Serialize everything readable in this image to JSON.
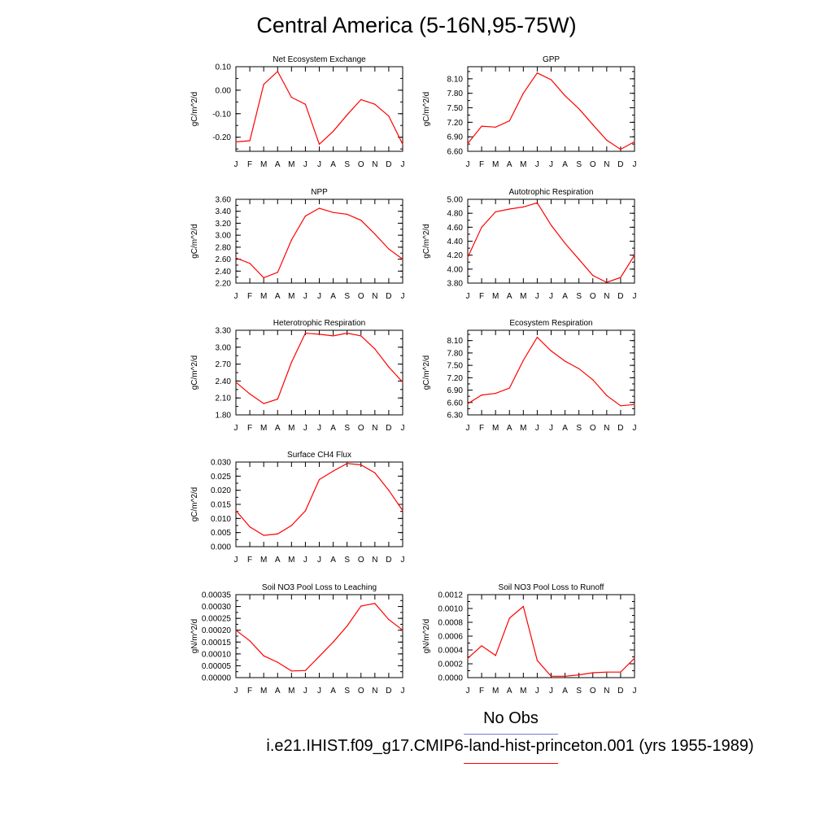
{
  "figure": {
    "title": "Central America (5-16N,95-75W)",
    "legend": [
      {
        "label": "No Obs",
        "color": "#7b7bd6"
      },
      {
        "label": "i.e21.IHIST.f09_g17.CMIP6-land-hist-princeton.001 (yrs 1955-1989)",
        "color": "#ff0000"
      }
    ],
    "line_color": "#ff0000"
  },
  "chart_data": [
    {
      "type": "line",
      "title": "Net Ecosystem Exchange",
      "ylabel": "gC/m^2/d",
      "categories": [
        "J",
        "F",
        "M",
        "A",
        "M",
        "J",
        "J",
        "A",
        "S",
        "O",
        "N",
        "D",
        "J"
      ],
      "ylim": [
        -0.26,
        0.1
      ],
      "yticks": [
        "0.10",
        "0.00",
        "-0.10",
        "-0.20"
      ],
      "ytick_values": [
        0.1,
        0.0,
        -0.1,
        -0.2
      ],
      "values": [
        -0.22,
        -0.215,
        0.025,
        0.08,
        -0.03,
        -0.06,
        -0.23,
        -0.175,
        -0.105,
        -0.04,
        -0.06,
        -0.11,
        -0.23
      ]
    },
    {
      "type": "line",
      "title": "GPP",
      "ylabel": "gC/m^2/d",
      "categories": [
        "J",
        "F",
        "M",
        "A",
        "M",
        "J",
        "J",
        "A",
        "S",
        "O",
        "N",
        "D",
        "J"
      ],
      "ylim": [
        6.6,
        8.35
      ],
      "yticks": [
        "8.10",
        "7.80",
        "7.50",
        "7.20",
        "6.90",
        "6.60"
      ],
      "ytick_values": [
        8.1,
        7.8,
        7.5,
        7.2,
        6.9,
        6.6
      ],
      "values": [
        6.76,
        7.12,
        7.1,
        7.23,
        7.8,
        8.22,
        8.08,
        7.75,
        7.48,
        7.15,
        6.83,
        6.64,
        6.8
      ]
    },
    {
      "type": "line",
      "title": "NPP",
      "ylabel": "gC/m^2/d",
      "categories": [
        "J",
        "F",
        "M",
        "A",
        "M",
        "J",
        "J",
        "A",
        "S",
        "O",
        "N",
        "D",
        "J"
      ],
      "ylim": [
        2.2,
        3.6
      ],
      "yticks": [
        "3.60",
        "3.40",
        "3.20",
        "3.00",
        "2.80",
        "2.60",
        "2.40",
        "2.20"
      ],
      "ytick_values": [
        3.6,
        3.4,
        3.2,
        3.0,
        2.8,
        2.6,
        2.4,
        2.2
      ],
      "values": [
        2.62,
        2.53,
        2.29,
        2.38,
        2.92,
        3.32,
        3.45,
        3.38,
        3.35,
        3.25,
        3.02,
        2.77,
        2.6
      ]
    },
    {
      "type": "line",
      "title": "Autotrophic Respiration",
      "ylabel": "gC/m^2/d",
      "categories": [
        "J",
        "F",
        "M",
        "A",
        "M",
        "J",
        "J",
        "A",
        "S",
        "O",
        "N",
        "D",
        "J"
      ],
      "ylim": [
        3.8,
        5.0
      ],
      "yticks": [
        "5.00",
        "4.80",
        "4.60",
        "4.40",
        "4.20",
        "4.00",
        "3.80"
      ],
      "ytick_values": [
        5.0,
        4.8,
        4.6,
        4.4,
        4.2,
        4.0,
        3.8
      ],
      "values": [
        4.17,
        4.6,
        4.82,
        4.86,
        4.89,
        4.95,
        4.63,
        4.37,
        4.14,
        3.91,
        3.81,
        3.88,
        4.2
      ]
    },
    {
      "type": "line",
      "title": "Heterotrophic Respiration",
      "ylabel": "gC/m^2/d",
      "categories": [
        "J",
        "F",
        "M",
        "A",
        "M",
        "J",
        "J",
        "A",
        "S",
        "O",
        "N",
        "D",
        "J"
      ],
      "ylim": [
        1.8,
        3.3
      ],
      "yticks": [
        "3.30",
        "3.00",
        "2.70",
        "2.40",
        "2.10",
        "1.80"
      ],
      "ytick_values": [
        3.3,
        3.0,
        2.7,
        2.4,
        2.1,
        1.8
      ],
      "values": [
        2.38,
        2.17,
        2.0,
        2.08,
        2.73,
        3.25,
        3.23,
        3.2,
        3.25,
        3.2,
        2.97,
        2.65,
        2.38
      ]
    },
    {
      "type": "line",
      "title": "Ecosystem Respiration",
      "ylabel": "gC/m^2/d",
      "categories": [
        "J",
        "F",
        "M",
        "A",
        "M",
        "J",
        "J",
        "A",
        "S",
        "O",
        "N",
        "D",
        "J"
      ],
      "ylim": [
        6.3,
        8.35
      ],
      "yticks": [
        "8.10",
        "7.80",
        "7.50",
        "7.20",
        "6.90",
        "6.60",
        "6.30"
      ],
      "ytick_values": [
        8.1,
        7.8,
        7.5,
        7.2,
        6.9,
        6.6,
        6.3
      ],
      "values": [
        6.57,
        6.78,
        6.82,
        6.95,
        7.62,
        8.18,
        7.85,
        7.6,
        7.42,
        7.15,
        6.77,
        6.52,
        6.55
      ]
    },
    {
      "type": "line",
      "title": "Surface CH4 Flux",
      "ylabel": "gC/m^2/d",
      "categories": [
        "J",
        "F",
        "M",
        "A",
        "M",
        "J",
        "J",
        "A",
        "S",
        "O",
        "N",
        "D",
        "J"
      ],
      "ylim": [
        0.0,
        0.03
      ],
      "yticks": [
        "0.030",
        "0.025",
        "0.020",
        "0.015",
        "0.010",
        "0.005",
        "0.000"
      ],
      "ytick_values": [
        0.03,
        0.025,
        0.02,
        0.015,
        0.01,
        0.005,
        0.0
      ],
      "values": [
        0.0128,
        0.007,
        0.004,
        0.0045,
        0.0075,
        0.0127,
        0.0238,
        0.0268,
        0.0295,
        0.029,
        0.0262,
        0.02,
        0.0128
      ]
    },
    {
      "type": "line",
      "title": "Soil NO3 Pool Loss to Leaching",
      "ylabel": "gN/m^2/d",
      "categories": [
        "J",
        "F",
        "M",
        "A",
        "M",
        "J",
        "J",
        "A",
        "S",
        "O",
        "N",
        "D",
        "J"
      ],
      "ylim": [
        0.0,
        0.00035
      ],
      "yticks": [
        "0.00035",
        "0.00030",
        "0.00025",
        "0.00020",
        "0.00015",
        "0.00010",
        "0.00005",
        "0.00000"
      ],
      "ytick_values": [
        0.00035,
        0.0003,
        0.00025,
        0.0002,
        0.00015,
        0.0001,
        5e-05,
        0.0
      ],
      "values": [
        0.0002,
        0.000155,
        9.2e-05,
        6.5e-05,
        2.8e-05,
        3e-05,
        9e-05,
        0.00015,
        0.000218,
        0.000302,
        0.000313,
        0.000245,
        0.0002
      ]
    },
    {
      "type": "line",
      "title": "Soil NO3 Pool Loss to Runoff",
      "ylabel": "gN/m^2/d",
      "categories": [
        "J",
        "F",
        "M",
        "A",
        "M",
        "J",
        "J",
        "A",
        "S",
        "O",
        "N",
        "D",
        "J"
      ],
      "ylim": [
        0.0,
        0.0012
      ],
      "yticks": [
        "0.0012",
        "0.0010",
        "0.0008",
        "0.0006",
        "0.0004",
        "0.0002",
        "0.0000"
      ],
      "ytick_values": [
        0.0012,
        0.001,
        0.0008,
        0.0006,
        0.0004,
        0.0002,
        0.0
      ],
      "values": [
        0.00028,
        0.00046,
        0.00032,
        0.00086,
        0.00103,
        0.00025,
        2e-05,
        2e-05,
        4e-05,
        7e-05,
        8e-05,
        8e-05,
        0.00028
      ]
    }
  ]
}
